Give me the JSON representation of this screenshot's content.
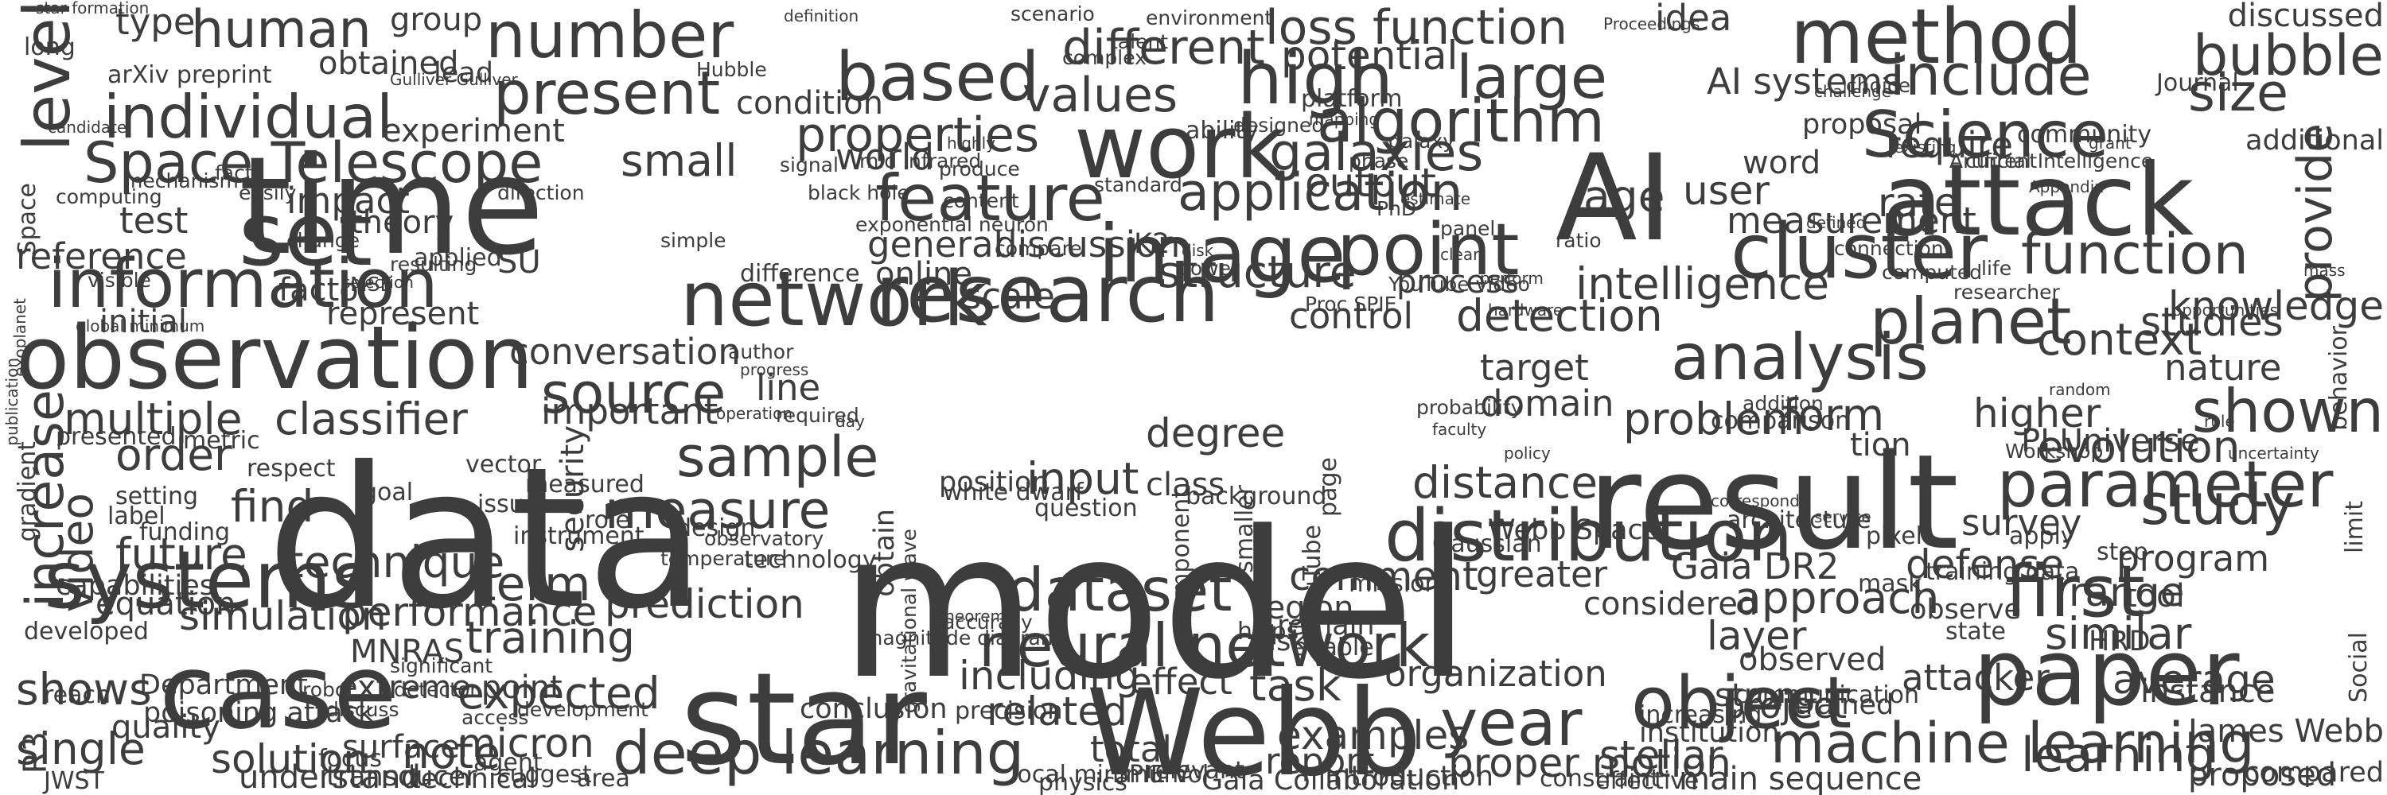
{
  "word_cloud": {
    "text_color": "#3d3d3d",
    "background": "#ffffff",
    "words": [
      {
        "text": "data"
      },
      {
        "text": "model"
      },
      {
        "text": "time"
      },
      {
        "text": "result"
      },
      {
        "text": "star"
      },
      {
        "text": "attack"
      },
      {
        "text": "AI"
      },
      {
        "text": "Webb"
      },
      {
        "text": "paper"
      },
      {
        "text": "observation"
      },
      {
        "text": "research"
      },
      {
        "text": "case"
      },
      {
        "text": "set"
      },
      {
        "text": "image"
      },
      {
        "text": "cluster"
      },
      {
        "text": "systems"
      },
      {
        "text": "network"
      },
      {
        "text": "method"
      },
      {
        "text": "number"
      },
      {
        "text": "level"
      },
      {
        "text": "information"
      },
      {
        "text": "point"
      },
      {
        "text": "analysis"
      },
      {
        "text": "distribution"
      },
      {
        "text": "object"
      },
      {
        "text": "work"
      },
      {
        "text": "feature"
      },
      {
        "text": "based"
      },
      {
        "text": "Science"
      },
      {
        "text": "function"
      },
      {
        "text": "dataset"
      },
      {
        "text": "neural network"
      },
      {
        "text": "deep learning"
      },
      {
        "text": "machine learning"
      },
      {
        "text": "parameter"
      },
      {
        "text": "individual"
      },
      {
        "text": "Space Telescope"
      },
      {
        "text": "large"
      },
      {
        "text": "high"
      },
      {
        "text": "present"
      },
      {
        "text": "algorithm"
      },
      {
        "text": "application"
      },
      {
        "text": "planet"
      },
      {
        "text": "first"
      },
      {
        "text": "study"
      },
      {
        "text": "year"
      },
      {
        "text": "source"
      },
      {
        "text": "sample"
      },
      {
        "text": "measure"
      },
      {
        "text": "shown"
      },
      {
        "text": "include"
      },
      {
        "text": "size"
      },
      {
        "text": "bubble"
      },
      {
        "text": "AI systems"
      },
      {
        "text": "loss function"
      },
      {
        "text": "different"
      },
      {
        "text": "values"
      },
      {
        "text": "properties"
      },
      {
        "text": "galaxies"
      },
      {
        "text": "potential"
      },
      {
        "text": "detection"
      },
      {
        "text": "structure"
      },
      {
        "text": "distance"
      },
      {
        "text": "input"
      },
      {
        "text": "classifier"
      },
      {
        "text": "order"
      },
      {
        "text": "find"
      },
      {
        "text": "video"
      },
      {
        "text": "increase"
      },
      {
        "text": "multiple"
      },
      {
        "text": "future"
      },
      {
        "text": "technique"
      },
      {
        "text": "simulation"
      },
      {
        "text": "performance"
      },
      {
        "text": "shows"
      },
      {
        "text": "single"
      },
      {
        "text": "solution"
      },
      {
        "text": "note"
      },
      {
        "text": "micron"
      },
      {
        "text": "term"
      },
      {
        "text": "training"
      },
      {
        "text": "prediction"
      },
      {
        "text": "expected"
      },
      {
        "text": "task"
      },
      {
        "text": "organization"
      },
      {
        "text": "examples"
      },
      {
        "text": "effect"
      },
      {
        "text": "including"
      },
      {
        "text": "related"
      },
      {
        "text": "report"
      },
      {
        "text": "proper motion"
      },
      {
        "text": "stellar"
      },
      {
        "text": "main sequence"
      },
      {
        "text": "average"
      },
      {
        "text": "similar"
      },
      {
        "text": "learning"
      },
      {
        "text": "project"
      },
      {
        "text": "observed"
      },
      {
        "text": "approach"
      },
      {
        "text": "layer"
      },
      {
        "text": "comment"
      },
      {
        "text": "greater"
      },
      {
        "text": "considered"
      },
      {
        "text": "defense"
      },
      {
        "text": "survey"
      },
      {
        "text": "range"
      },
      {
        "text": "program"
      },
      {
        "text": "form"
      },
      {
        "text": "higher"
      },
      {
        "text": "problem"
      },
      {
        "text": "context"
      },
      {
        "text": "studies"
      },
      {
        "text": "nature"
      },
      {
        "text": "evolution"
      },
      {
        "text": "knowledge"
      },
      {
        "text": "provide"
      },
      {
        "text": "rate"
      },
      {
        "text": "user"
      },
      {
        "text": "age"
      },
      {
        "text": "measurement"
      },
      {
        "text": "require"
      },
      {
        "text": "intelligence"
      },
      {
        "text": "process"
      },
      {
        "text": "target"
      },
      {
        "text": "domain"
      },
      {
        "text": "control"
      },
      {
        "text": "output"
      },
      {
        "text": "discussion"
      },
      {
        "text": "general"
      },
      {
        "text": "online"
      },
      {
        "text": "K2"
      },
      {
        "text": "small"
      },
      {
        "text": "world"
      },
      {
        "text": "condition"
      },
      {
        "text": "human"
      },
      {
        "text": "type"
      },
      {
        "text": "group"
      },
      {
        "text": "obtained"
      },
      {
        "text": "lead"
      },
      {
        "text": "experiment"
      },
      {
        "text": "impact"
      },
      {
        "text": "test"
      },
      {
        "text": "theory"
      },
      {
        "text": "reference"
      },
      {
        "text": "factor"
      },
      {
        "text": "represent"
      },
      {
        "text": "SU"
      },
      {
        "text": "conversation"
      },
      {
        "text": "important"
      },
      {
        "text": "line"
      },
      {
        "text": "initial"
      },
      {
        "text": "idea"
      },
      {
        "text": "proposal"
      },
      {
        "text": "word"
      },
      {
        "text": "discussed"
      },
      {
        "text": "additional"
      },
      {
        "text": "scale"
      },
      {
        "text": "Space"
      },
      {
        "text": "behavior"
      },
      {
        "text": "position"
      },
      {
        "text": "class"
      },
      {
        "text": "obtain"
      },
      {
        "text": "security"
      },
      {
        "text": "region"
      },
      {
        "text": "risk"
      },
      {
        "text": "degree"
      },
      {
        "text": "tion"
      },
      {
        "text": "PI Universe"
      },
      {
        "text": "Gaia DR2"
      },
      {
        "text": "attacker"
      },
      {
        "text": "tool"
      },
      {
        "text": "James Webb"
      },
      {
        "text": "instance"
      },
      {
        "text": "proposed"
      },
      {
        "text": "compared"
      },
      {
        "text": "Introduction"
      },
      {
        "text": "Gaia Collaboration"
      },
      {
        "text": "local minimum"
      },
      {
        "text": "SPIE Vol"
      },
      {
        "text": "total"
      },
      {
        "text": "precision"
      },
      {
        "text": "MNRAS"
      },
      {
        "text": "extreme point"
      },
      {
        "text": "equation"
      },
      {
        "text": "capabilities"
      },
      {
        "text": "developed"
      },
      {
        "text": "quality"
      },
      {
        "text": "poisoning attack"
      },
      {
        "text": "Department"
      },
      {
        "text": "reach"
      },
      {
        "text": "R3"
      },
      {
        "text": "JWST"
      },
      {
        "text": "understand"
      },
      {
        "text": "transducer"
      },
      {
        "text": "surface"
      },
      {
        "text": "focus"
      },
      {
        "text": "technical"
      },
      {
        "text": "suggest"
      },
      {
        "text": "agent"
      },
      {
        "text": "area"
      },
      {
        "text": "conclusion"
      },
      {
        "text": "physics"
      },
      {
        "text": "relevant"
      },
      {
        "text": "constraint"
      },
      {
        "text": "effective"
      },
      {
        "text": "strong"
      },
      {
        "text": "trained"
      },
      {
        "text": "institution"
      },
      {
        "text": "increasing"
      },
      {
        "text": "communication"
      },
      {
        "text": "Webb Space"
      },
      {
        "text": "mask"
      },
      {
        "text": "observe"
      },
      {
        "text": "state"
      },
      {
        "text": "HRD"
      },
      {
        "text": "Social"
      },
      {
        "text": "apply"
      },
      {
        "text": "step"
      },
      {
        "text": "limit"
      },
      {
        "text": "Gaussian"
      },
      {
        "text": "remain"
      },
      {
        "text": "enable"
      },
      {
        "text": "training data"
      },
      {
        "text": "architecture"
      },
      {
        "text": "pixel"
      },
      {
        "text": "mission"
      },
      {
        "text": "white dwarf"
      },
      {
        "text": "question"
      },
      {
        "text": "background"
      },
      {
        "text": "component"
      },
      {
        "text": "page"
      },
      {
        "text": "smaller"
      },
      {
        "text": "YouTube"
      },
      {
        "text": "https"
      },
      {
        "text": "instrument"
      },
      {
        "text": "technology"
      },
      {
        "text": "design"
      },
      {
        "text": "role"
      },
      {
        "text": "issue"
      },
      {
        "text": "measured"
      },
      {
        "text": "setting"
      },
      {
        "text": "label"
      },
      {
        "text": "funding"
      },
      {
        "text": "goal"
      },
      {
        "text": "respect"
      },
      {
        "text": "vector"
      },
      {
        "text": "gradient"
      },
      {
        "text": "presented"
      },
      {
        "text": "metric"
      },
      {
        "text": "star formation"
      },
      {
        "text": "long"
      },
      {
        "text": "arXiv preprint"
      },
      {
        "text": "Gulliver Gulliver"
      },
      {
        "text": "Hubble"
      },
      {
        "text": "definition"
      },
      {
        "text": "exponential neuron"
      },
      {
        "text": "black hole"
      },
      {
        "text": "content"
      },
      {
        "text": "author"
      },
      {
        "text": "progress"
      },
      {
        "text": "required"
      },
      {
        "text": "day"
      },
      {
        "text": "operation"
      },
      {
        "text": "direction"
      },
      {
        "text": "mechanism"
      },
      {
        "text": "fact"
      },
      {
        "text": "easily"
      },
      {
        "text": "applied"
      },
      {
        "text": "MSE"
      },
      {
        "text": "probability"
      },
      {
        "text": "faculty"
      },
      {
        "text": "policy"
      },
      {
        "text": "comparison"
      },
      {
        "text": "addition"
      },
      {
        "text": "random"
      },
      {
        "text": "uncertainty"
      },
      {
        "text": "service"
      },
      {
        "text": "correspond"
      },
      {
        "text": "Appendix"
      },
      {
        "text": "life"
      },
      {
        "text": "researcher"
      },
      {
        "text": "opportunities"
      },
      {
        "text": "current"
      },
      {
        "text": "community"
      },
      {
        "text": "grant"
      },
      {
        "text": "existing"
      },
      {
        "text": "challenge"
      },
      {
        "text": "choice"
      },
      {
        "text": "Artificial Intelligence"
      },
      {
        "text": "Proceedings"
      },
      {
        "text": "ratio"
      },
      {
        "text": "PhD"
      },
      {
        "text": "YouTube video"
      },
      {
        "text": "Proc SPIE"
      },
      {
        "text": "panel"
      },
      {
        "text": "clear"
      },
      {
        "text": "estimate"
      },
      {
        "text": "phase"
      },
      {
        "text": "galaxy"
      },
      {
        "text": "platform"
      },
      {
        "text": "mapping"
      },
      {
        "text": "designed"
      },
      {
        "text": "talent"
      },
      {
        "text": "complex"
      },
      {
        "text": "environment"
      },
      {
        "text": "scenario"
      },
      {
        "text": "mid infrared"
      },
      {
        "text": "produce"
      },
      {
        "text": "highly"
      },
      {
        "text": "ability"
      },
      {
        "text": "power"
      },
      {
        "text": "disk"
      },
      {
        "text": "standard"
      },
      {
        "text": "compare"
      },
      {
        "text": "signal"
      },
      {
        "text": "difference"
      },
      {
        "text": "simple"
      },
      {
        "text": "resulting"
      },
      {
        "text": "selection"
      },
      {
        "text": "change"
      },
      {
        "text": "visible"
      },
      {
        "text": "computing"
      },
      {
        "text": "exoplanet"
      },
      {
        "text": "publication"
      },
      {
        "text": "global minimum"
      },
      {
        "text": "accuracy"
      },
      {
        "text": "Theorem"
      },
      {
        "text": "magnitude diagram"
      },
      {
        "text": "gravitational wave"
      },
      {
        "text": "observatory"
      },
      {
        "text": "temperature"
      },
      {
        "text": "robot"
      },
      {
        "text": "discuss"
      },
      {
        "text": "significant"
      },
      {
        "text": "detector"
      },
      {
        "text": "development"
      },
      {
        "text": "access"
      },
      {
        "text": "candidate"
      },
      {
        "text": "Workshop"
      },
      {
        "text": "rule"
      },
      {
        "text": "computed"
      },
      {
        "text": "connection"
      },
      {
        "text": "defined"
      },
      {
        "text": "perform"
      },
      {
        "text": "hardware"
      },
      {
        "text": "mass"
      },
      {
        "text": "Journal"
      }
    ]
  }
}
